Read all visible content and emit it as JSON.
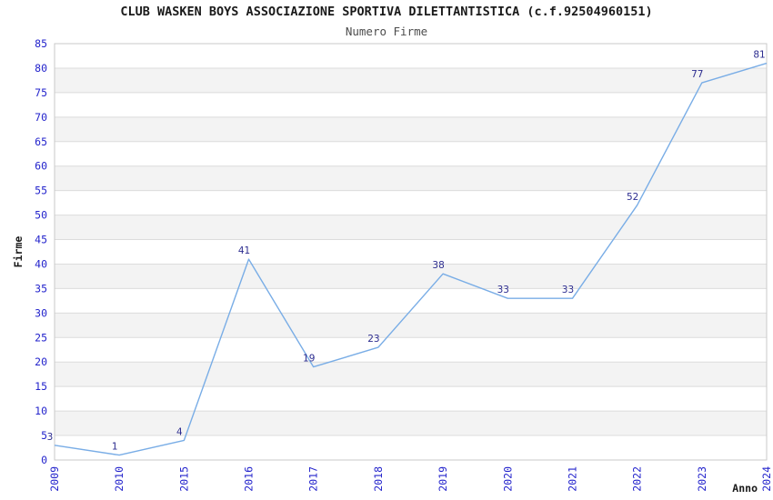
{
  "chart_data": {
    "type": "line",
    "title": "CLUB WASKEN BOYS ASSOCIAZIONE SPORTIVA DILETTANTISTICA (c.f.92504960151)",
    "subtitle": "Numero Firme",
    "xlabel": "Anno",
    "ylabel": "Firme",
    "categories": [
      "2009",
      "2010",
      "2015",
      "2016",
      "2017",
      "2018",
      "2019",
      "2020",
      "2021",
      "2022",
      "2023",
      "2024"
    ],
    "values": [
      3,
      1,
      4,
      41,
      19,
      23,
      38,
      33,
      33,
      52,
      77,
      81
    ],
    "data_labels_shown": true,
    "ylim": [
      0,
      85
    ],
    "ytick_step": 5,
    "yticks": [
      0,
      5,
      10,
      15,
      20,
      25,
      30,
      35,
      40,
      45,
      50,
      55,
      60,
      65,
      70,
      75,
      80,
      85
    ],
    "grid": "horizontal gridlines with alternating shaded bands",
    "legend": "none",
    "x_tick_rotation_degrees": 90,
    "colors": {
      "line": "#79ade6",
      "tick_label": "#2424cc",
      "data_label": "#2c2c8f",
      "title": "#1a1a1a",
      "subtitle": "#4d4d4d",
      "band": "#f3f3f3",
      "gridline": "#dcdcdc",
      "plot_border": "#c9c9c9",
      "background": "#ffffff"
    }
  }
}
